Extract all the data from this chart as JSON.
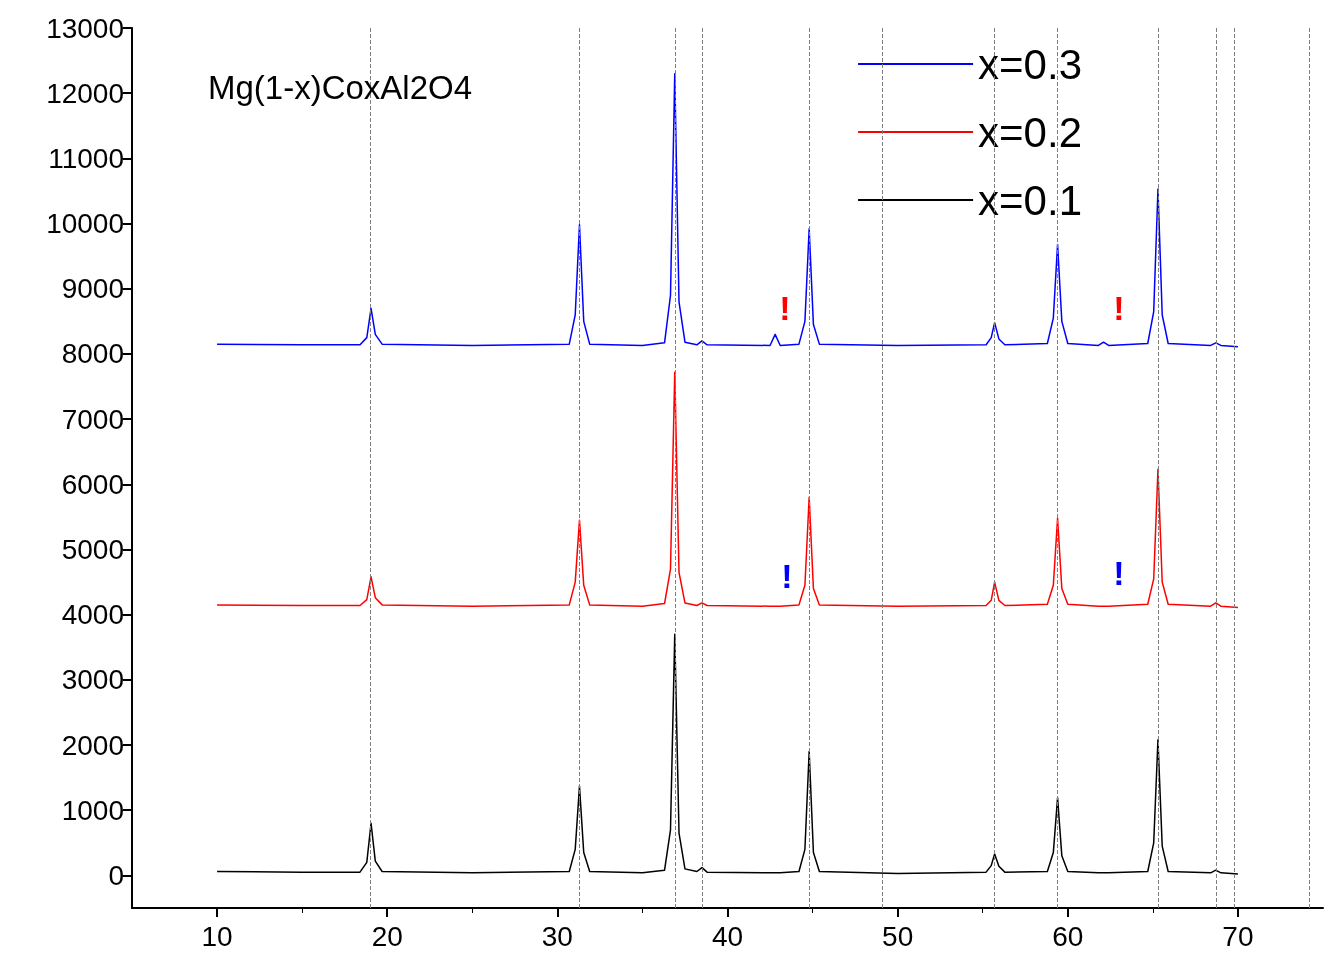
{
  "chart_data": {
    "type": "line",
    "title": "Mg(1-x)CoxAl2O4",
    "x": [
      10,
      15,
      18.4,
      18.8,
      19.05,
      19.3,
      19.7,
      25,
      30.7,
      31.05,
      31.3,
      31.55,
      31.9,
      35,
      36.3,
      36.65,
      36.9,
      37.15,
      37.5,
      38.2,
      38.5,
      38.8,
      42.5,
      42.8,
      43.1,
      44.2,
      44.55,
      44.8,
      45.05,
      45.4,
      50,
      55.2,
      55.5,
      55.7,
      55.95,
      56.3,
      58.8,
      59.15,
      59.4,
      59.65,
      60,
      61.8,
      62.1,
      62.4,
      64.7,
      65.05,
      65.3,
      65.55,
      65.9,
      68.4,
      68.7,
      69,
      70
    ],
    "series": [
      {
        "name": "x=0.3",
        "color": "#0000ff",
        "values": [
          8150,
          8140,
          8140,
          8250,
          8700,
          8300,
          8150,
          8130,
          8150,
          8600,
          9980,
          8500,
          8150,
          8130,
          8170,
          8900,
          12300,
          8800,
          8180,
          8140,
          8200,
          8140,
          8130,
          8300,
          8130,
          8150,
          8500,
          9920,
          8450,
          8150,
          8130,
          8140,
          8250,
          8480,
          8230,
          8140,
          8160,
          8550,
          9680,
          8500,
          8160,
          8130,
          8180,
          8130,
          8160,
          8650,
          10530,
          8600,
          8160,
          8130,
          8170,
          8130,
          8110
        ]
      },
      {
        "name": "x=0.2",
        "color": "#ff0000",
        "values": [
          4150,
          4140,
          4140,
          4230,
          4580,
          4260,
          4150,
          4130,
          4150,
          4500,
          5450,
          4450,
          4150,
          4130,
          4170,
          4700,
          7720,
          4650,
          4180,
          4140,
          4180,
          4140,
          4130,
          4130,
          4130,
          4150,
          4450,
          5800,
          4400,
          4150,
          4130,
          4140,
          4220,
          4500,
          4220,
          4140,
          4160,
          4450,
          5480,
          4400,
          4160,
          4130,
          4130,
          4130,
          4160,
          4550,
          6230,
          4500,
          4160,
          4130,
          4180,
          4130,
          4110
        ]
      },
      {
        "name": "x=0.1",
        "color": "#000000",
        "values": [
          60,
          50,
          50,
          200,
          800,
          220,
          60,
          40,
          60,
          400,
          1370,
          350,
          60,
          40,
          80,
          700,
          3700,
          650,
          100,
          60,
          120,
          50,
          40,
          40,
          40,
          60,
          400,
          1900,
          350,
          60,
          30,
          50,
          150,
          330,
          140,
          50,
          60,
          350,
          1190,
          300,
          60,
          40,
          40,
          40,
          60,
          500,
          2080,
          450,
          60,
          40,
          80,
          40,
          20
        ]
      }
    ],
    "annotations": [
      "!",
      "!",
      "!",
      "!"
    ],
    "xlim": [
      5,
      75
    ],
    "xticks": [
      10,
      20,
      30,
      40,
      50,
      60,
      70
    ],
    "ylim": [
      -500,
      13000
    ],
    "yticks": [
      0,
      1000,
      2000,
      3000,
      4000,
      5000,
      6000,
      7000,
      8000,
      9000,
      10000,
      11000,
      12000,
      13000
    ],
    "ref_lines": [
      {
        "axis": "x",
        "value": 19,
        "color": "#808080",
        "line_style": "dashed"
      },
      {
        "axis": "x",
        "value": 31.3,
        "color": "#808080",
        "line_style": "dashed"
      },
      {
        "axis": "x",
        "value": 36.9,
        "color": "#808080",
        "line_style": "dashed"
      },
      {
        "axis": "x",
        "value": 38.5,
        "color": "#808080",
        "line_style": "dashed"
      },
      {
        "axis": "x",
        "value": 44.8,
        "color": "#808080",
        "line_style": "dashed"
      },
      {
        "axis": "x",
        "value": 49.1,
        "color": "#808080",
        "line_style": "dashed"
      },
      {
        "axis": "x",
        "value": 55.7,
        "color": "#808080",
        "line_style": "dashed"
      },
      {
        "axis": "x",
        "value": 59.4,
        "color": "#808080",
        "line_style": "dashed"
      },
      {
        "axis": "x",
        "value": 65.3,
        "color": "#808080",
        "line_style": "dashed"
      },
      {
        "axis": "x",
        "value": 68.7,
        "color": "#808080",
        "line_style": "dashed"
      },
      {
        "axis": "x",
        "value": 69.8,
        "color": "#808080",
        "line_style": "dashed"
      },
      {
        "axis": "x",
        "value": 74.2,
        "color": "#808080",
        "line_style": "dashed"
      }
    ],
    "grid": false,
    "legend": "top right",
    "marker": "none",
    "line_style": "solid"
  }
}
